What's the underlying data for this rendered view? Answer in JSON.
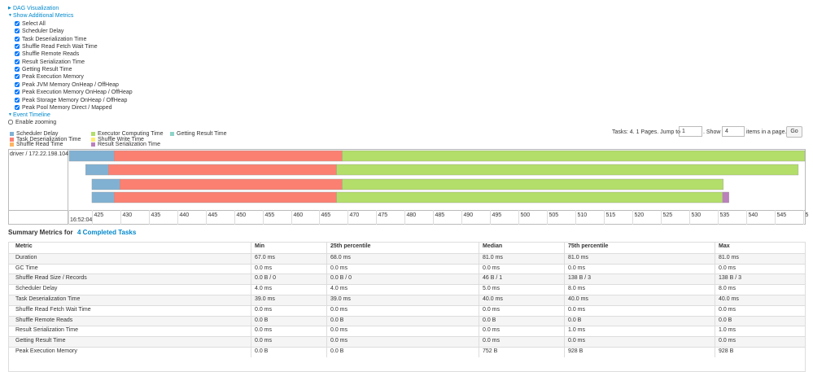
{
  "dag_visualization": "DAG Visualization",
  "additional_metrics": {
    "title": "Show Additional Metrics",
    "options": [
      "Select All",
      "Scheduler Delay",
      "Task Deserialization Time",
      "Shuffle Read Fetch Wait Time",
      "Shuffle Remote Reads",
      "Result Serialization Time",
      "Getting Result Time",
      "Peak Execution Memory",
      "Peak JVM Memory OnHeap / OffHeap",
      "Peak Execution Memory OnHeap / OffHeap",
      "Peak Storage Memory OnHeap / OffHeap",
      "Peak Pool Memory Direct / Mapped"
    ]
  },
  "event_timeline": {
    "title": "Event Timeline",
    "enable_zooming": "Enable zooming",
    "pagination": {
      "prefix": "Tasks: 4. 1 Pages. Jump to",
      "page": 1,
      "show": ". Show",
      "page_size": 4,
      "suffix": "items in a page.",
      "button": "Go"
    },
    "legend": [
      {
        "name": "Scheduler Delay",
        "color": "#80b1d3",
        "ranges": [
          [
            421,
            428.9
          ],
          [
            423.9,
            427.9
          ],
          [
            425,
            429.9
          ],
          [
            425,
            428.9
          ]
        ]
      },
      {
        "name": "Task Deserialization Time",
        "color": "#fb8072",
        "ranges": [
          [
            428.9,
            469
          ],
          [
            427.9,
            468
          ],
          [
            429.9,
            469
          ],
          [
            428.9,
            468
          ]
        ]
      },
      {
        "name": "Shuffle Read Time",
        "color": "#fdb462"
      },
      {
        "name": "Executor Computing Time",
        "color": "#b3de69",
        "ranges": [
          [
            469,
            550.4
          ],
          [
            468,
            549.2
          ],
          [
            469,
            536
          ],
          [
            468,
            535.9
          ]
        ]
      },
      {
        "name": "Shuffle Write Time",
        "color": "#ffed6f"
      },
      {
        "name": "Result Serialization Time",
        "color": "#bc80bd",
        "ranges": [
          null,
          null,
          null,
          [
            535.9,
            537
          ]
        ]
      },
      {
        "name": "Getting Result Time",
        "color": "#8dd3c7"
      }
    ],
    "executor": "driver / 172.22.198.104",
    "xlim": [
      421,
      550.5
    ],
    "xticks": [
      425,
      430,
      435,
      440,
      445,
      450,
      455,
      460,
      465,
      470,
      475,
      480,
      485,
      490,
      495,
      500,
      505,
      510,
      515,
      520,
      525,
      530,
      535,
      540,
      545,
      {
        "value": 550,
        "label": "5"
      }
    ],
    "start_time": "16:52:04"
  },
  "summary": {
    "title": "Summary Metrics for",
    "link": "4 Completed Tasks",
    "columns": [
      "Metric",
      "Min",
      "25th percentile",
      "Median",
      "75th percentile",
      "Max"
    ],
    "rows": [
      [
        "Duration",
        "67.0 ms",
        "68.0 ms",
        "81.0 ms",
        "81.0 ms",
        "81.0 ms"
      ],
      [
        "GC Time",
        "0.0 ms",
        "0.0 ms",
        "0.0 ms",
        "0.0 ms",
        "0.0 ms"
      ],
      [
        "Shuffle Read Size / Records",
        "0.0 B / 0",
        "0.0 B / 0",
        "46 B / 1",
        "138 B / 3",
        "138 B / 3"
      ],
      [
        "Scheduler Delay",
        "4.0 ms",
        "4.0 ms",
        "5.0 ms",
        "8.0 ms",
        "8.0 ms"
      ],
      [
        "Task Deserialization Time",
        "39.0 ms",
        "39.0 ms",
        "40.0 ms",
        "40.0 ms",
        "40.0 ms"
      ],
      [
        "Shuffle Read Fetch Wait Time",
        "0.0 ms",
        "0.0 ms",
        "0.0 ms",
        "0.0 ms",
        "0.0 ms"
      ],
      [
        "Shuffle Remote Reads",
        "0.0 B",
        "0.0 B",
        "0.0 B",
        "0.0 B",
        "0.0 B"
      ],
      [
        "Result Serialization Time",
        "0.0 ms",
        "0.0 ms",
        "0.0 ms",
        "1.0 ms",
        "1.0 ms"
      ],
      [
        "Getting Result Time",
        "0.0 ms",
        "0.0 ms",
        "0.0 ms",
        "0.0 ms",
        "0.0 ms"
      ],
      [
        "Peak Execution Memory",
        "0.0 B",
        "0.0 B",
        "752 B",
        "928 B",
        "928 B"
      ]
    ]
  }
}
